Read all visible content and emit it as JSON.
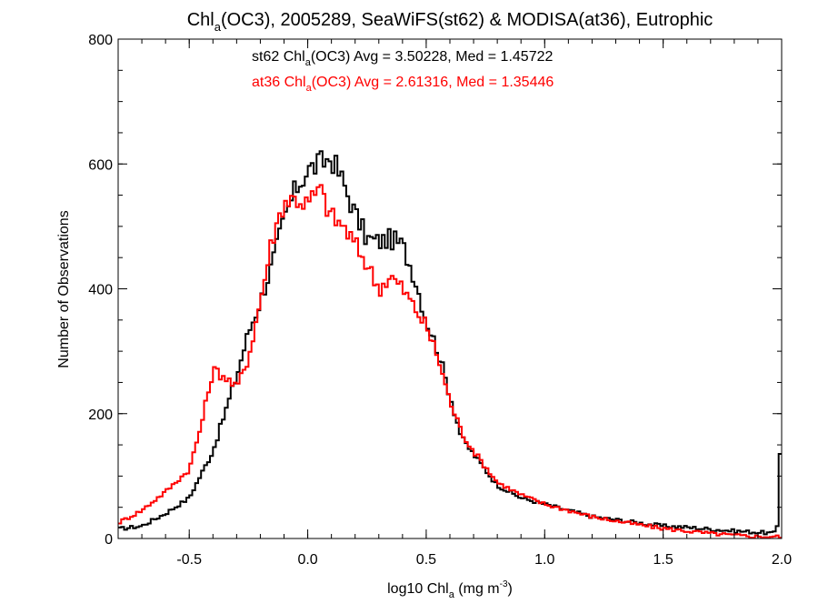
{
  "chart_data": {
    "type": "histogram-step",
    "title_main": "Chl",
    "title_sub": "a",
    "title_rest": "(OC3), 2005289, SeaWiFS(st62) & MODISA(at36), Eutrophic",
    "xlabel_main": "log10 Chl",
    "xlabel_sub": "a",
    "xlabel_units": " (mg m",
    "xlabel_sup": "-3",
    "xlabel_close": ")",
    "ylabel": "Number of Observations",
    "xlim": [
      -0.8,
      2.0
    ],
    "ylim": [
      0,
      800
    ],
    "x_ticks": [
      -0.5,
      0.0,
      0.5,
      1.0,
      1.5,
      2.0
    ],
    "x_tick_labels": [
      "-0.5",
      "0.0",
      "0.5",
      "1.0",
      "1.5",
      "2.0"
    ],
    "y_ticks": [
      0,
      200,
      400,
      600,
      800
    ],
    "y_tick_labels": [
      "0",
      "200",
      "400",
      "600",
      "800"
    ],
    "annotations": [
      {
        "prefix": "st62 Chl",
        "sub": "a",
        "suffix": "(OC3) Avg = 3.50228, Med = 1.45722",
        "color": "#000000"
      },
      {
        "prefix": "at36 Chl",
        "sub": "a",
        "suffix": "(OC3) Avg = 2.61316, Med = 1.35446",
        "color": "#ff0000"
      }
    ],
    "series": [
      {
        "name": "st62",
        "color": "#000000",
        "x": [
          -0.8,
          -0.7,
          -0.6,
          -0.5,
          -0.4,
          -0.3,
          -0.25,
          -0.2,
          -0.15,
          -0.1,
          -0.05,
          0.0,
          0.05,
          0.1,
          0.15,
          0.2,
          0.25,
          0.3,
          0.35,
          0.4,
          0.45,
          0.5,
          0.55,
          0.6,
          0.65,
          0.7,
          0.75,
          0.8,
          0.9,
          1.0,
          1.1,
          1.2,
          1.3,
          1.4,
          1.5,
          1.6,
          1.7,
          1.8,
          1.9,
          1.98,
          1.995,
          2.0
        ],
        "values": [
          15,
          20,
          40,
          65,
          140,
          260,
          330,
          380,
          440,
          510,
          560,
          590,
          600,
          610,
          570,
          520,
          480,
          475,
          480,
          470,
          420,
          350,
          300,
          230,
          160,
          135,
          110,
          85,
          65,
          55,
          45,
          35,
          30,
          25,
          20,
          18,
          15,
          12,
          10,
          8,
          150,
          5
        ]
      },
      {
        "name": "at36",
        "color": "#ff0000",
        "x": [
          -0.8,
          -0.7,
          -0.6,
          -0.5,
          -0.45,
          -0.4,
          -0.35,
          -0.3,
          -0.25,
          -0.2,
          -0.15,
          -0.1,
          -0.05,
          0.0,
          0.05,
          0.1,
          0.15,
          0.2,
          0.25,
          0.3,
          0.35,
          0.4,
          0.45,
          0.5,
          0.55,
          0.6,
          0.65,
          0.7,
          0.75,
          0.8,
          0.9,
          1.0,
          1.1,
          1.2,
          1.3,
          1.4,
          1.5,
          1.6,
          1.7,
          1.8,
          1.9,
          2.0
        ],
        "values": [
          25,
          45,
          75,
          110,
          180,
          270,
          260,
          240,
          290,
          380,
          480,
          540,
          545,
          535,
          560,
          515,
          500,
          470,
          440,
          400,
          420,
          400,
          370,
          340,
          290,
          220,
          170,
          140,
          115,
          90,
          70,
          55,
          45,
          35,
          28,
          22,
          16,
          12,
          8,
          5,
          3,
          3
        ]
      }
    ]
  }
}
